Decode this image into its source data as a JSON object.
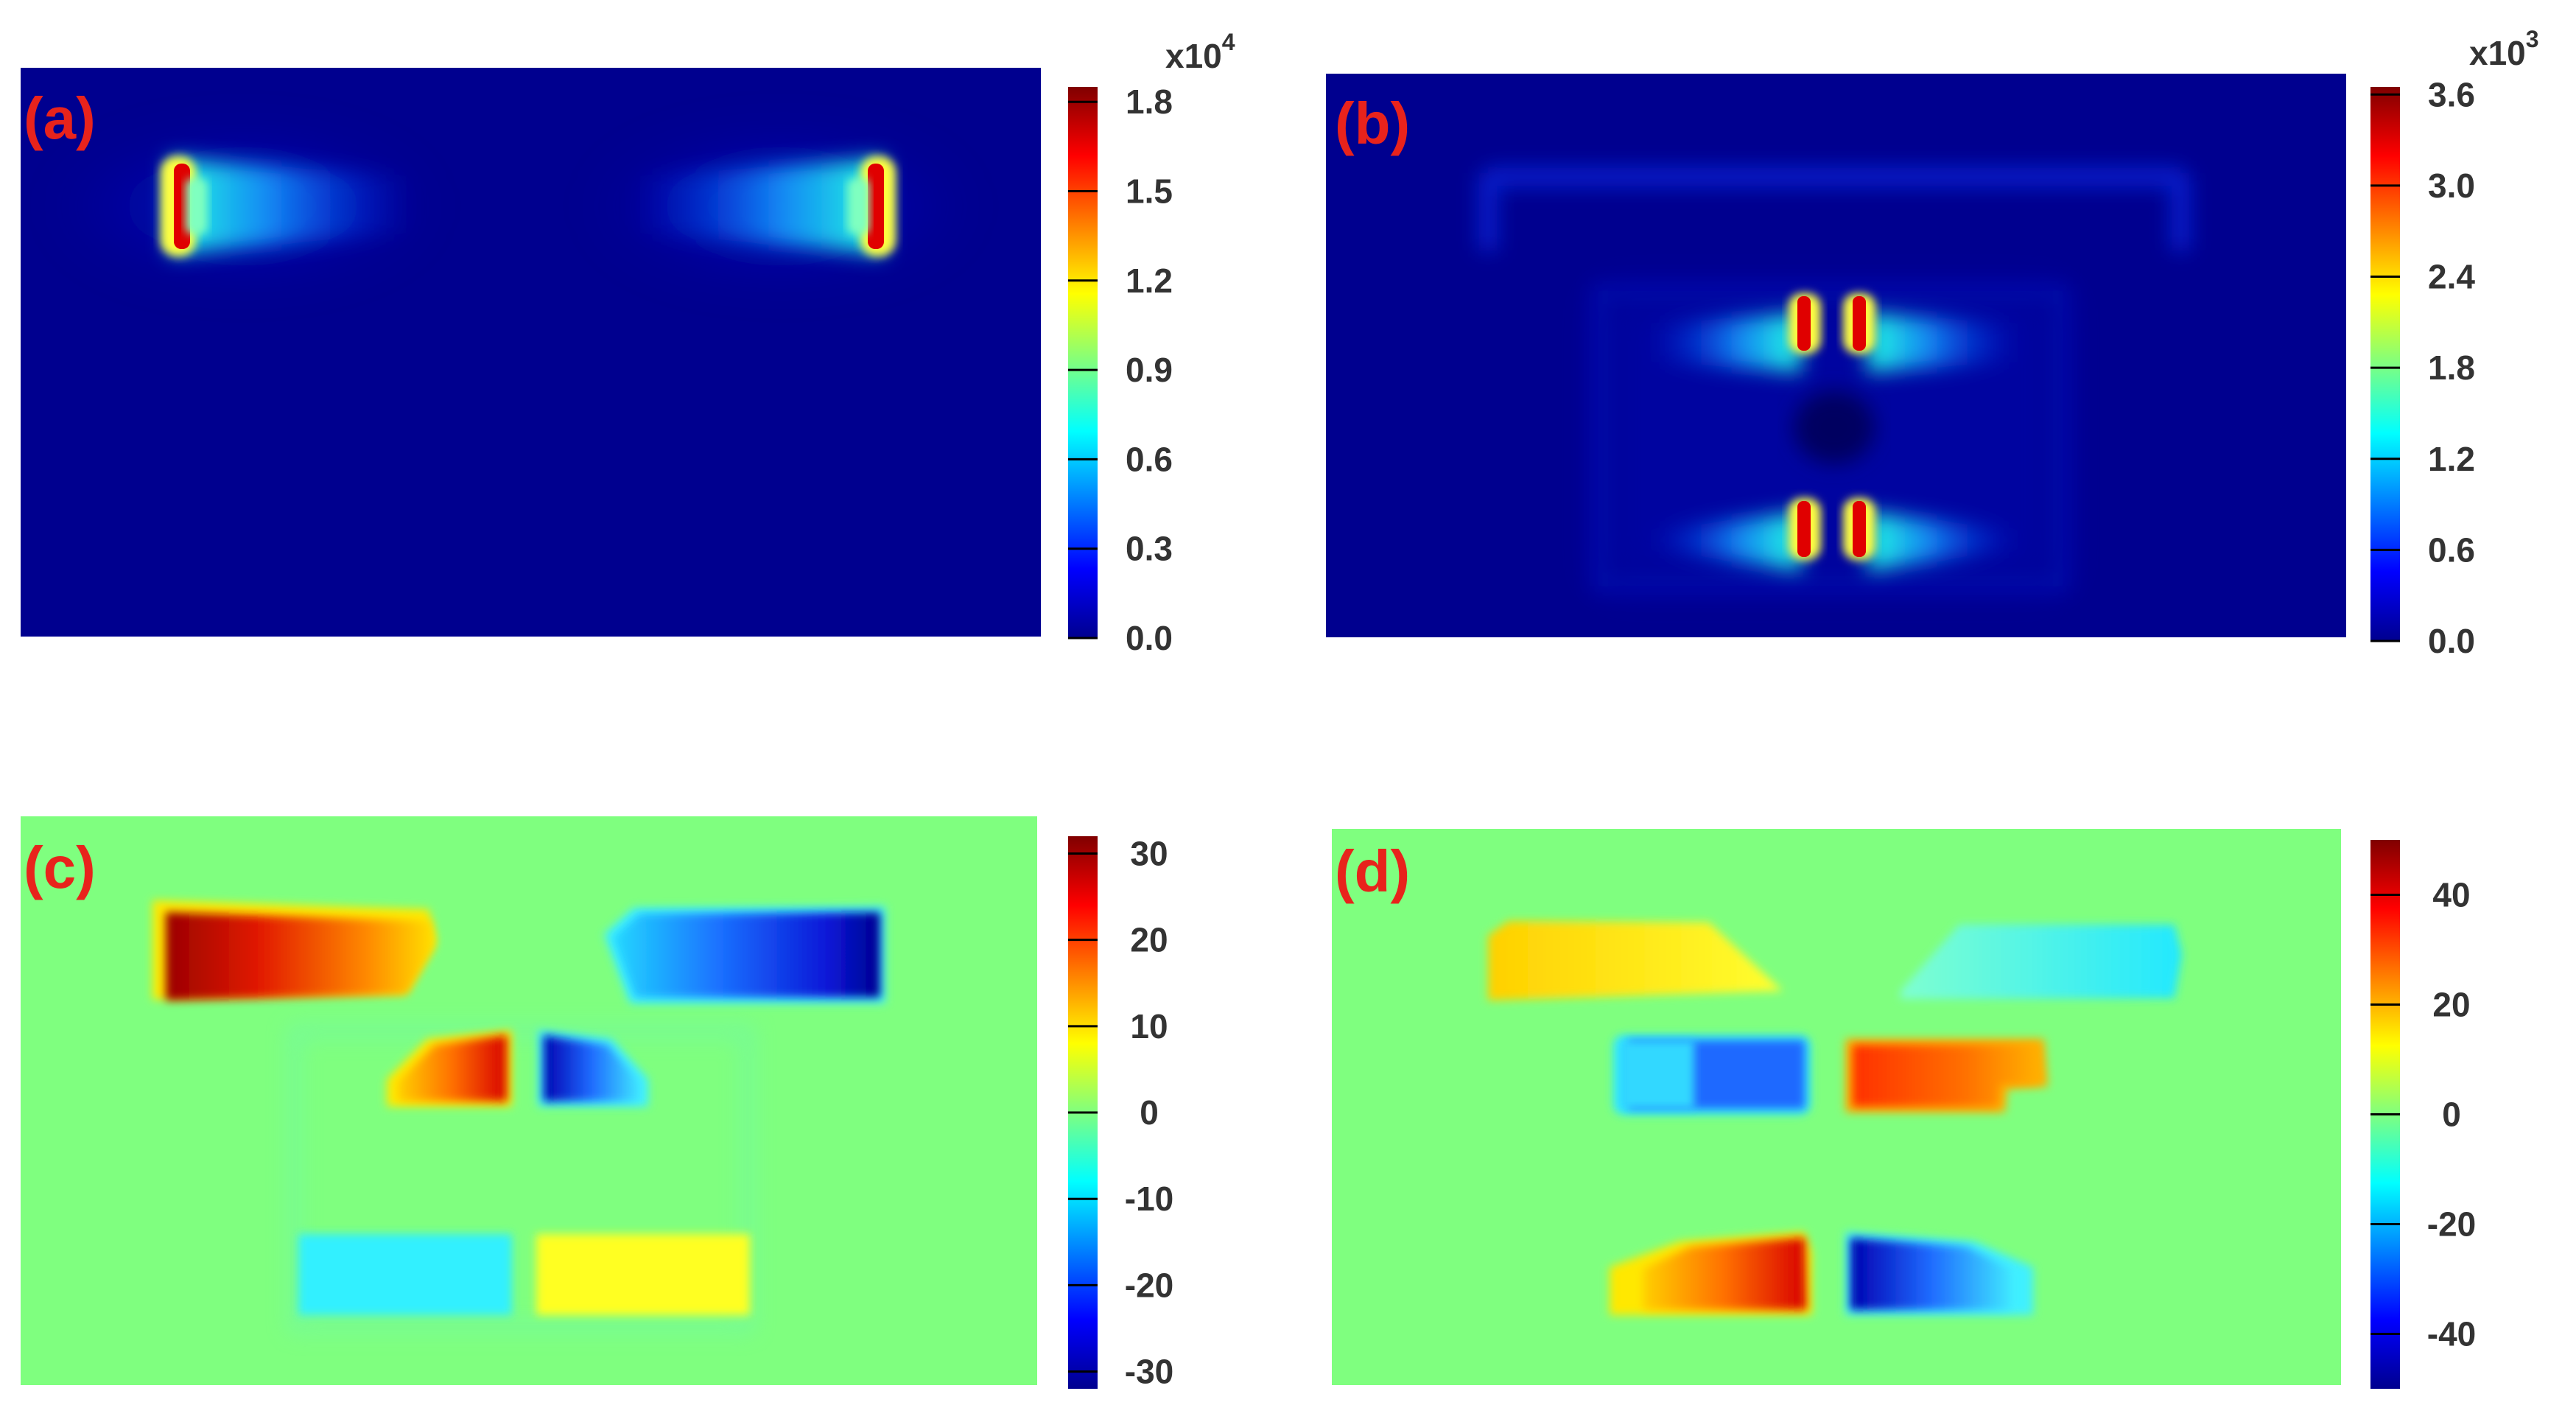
{
  "figure": {
    "background": "#ffffff"
  },
  "colormap": "jet",
  "chart_data": [
    {
      "panel_label": "(a)",
      "type": "heatmap",
      "colorbar": {
        "multiplier_base": "x10",
        "multiplier_exp": "4",
        "range": [
          0.0,
          1.85
        ],
        "ticks": [
          0.0,
          0.3,
          0.6,
          0.9,
          1.2,
          1.5,
          1.8
        ],
        "tick_labels": [
          "0.0",
          "0.3",
          "0.6",
          "0.9",
          "1.2",
          "1.5",
          "1.8"
        ]
      }
    },
    {
      "panel_label": "(b)",
      "type": "heatmap",
      "colorbar": {
        "multiplier_base": "x10",
        "multiplier_exp": "3",
        "range": [
          0.0,
          3.65
        ],
        "ticks": [
          0.0,
          0.6,
          1.2,
          1.8,
          2.4,
          3.0,
          3.6
        ],
        "tick_labels": [
          "0.0",
          "0.6",
          "1.2",
          "1.8",
          "2.4",
          "3.0",
          "3.6"
        ]
      }
    },
    {
      "panel_label": "(c)",
      "type": "heatmap",
      "colorbar": {
        "range": [
          -32,
          32
        ],
        "ticks": [
          -30,
          -20,
          -10,
          0,
          10,
          20,
          30
        ],
        "tick_labels": [
          "-30",
          "-20",
          "-10",
          "0",
          "10",
          "20",
          "30"
        ]
      }
    },
    {
      "panel_label": "(d)",
      "type": "heatmap",
      "colorbar": {
        "range": [
          -50,
          50
        ],
        "ticks": [
          -40,
          -20,
          0,
          20,
          40
        ],
        "tick_labels": [
          "-40",
          "-20",
          "0",
          "20",
          "40"
        ]
      }
    }
  ],
  "colors": {
    "label": "#e8231c",
    "tick_text": "#333333",
    "background_a_b": "#00008f",
    "background_c_d": "#7fff7f"
  }
}
